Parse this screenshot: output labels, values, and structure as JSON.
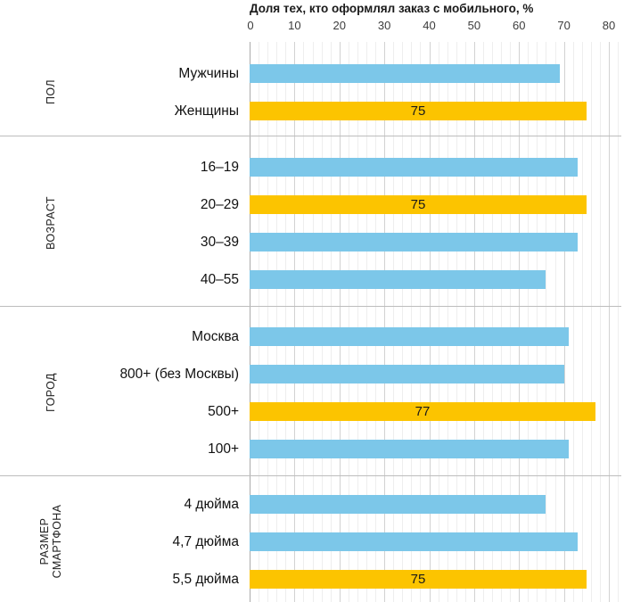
{
  "chart_data": {
    "type": "bar",
    "orientation": "horizontal",
    "title": "Доля тех, кто оформлял заказ с мобильного, %",
    "xlabel": "",
    "ylabel": "",
    "xlim": [
      0,
      80
    ],
    "x_ticks": [
      0,
      10,
      20,
      30,
      40,
      50,
      60,
      70,
      80
    ],
    "grid": "minor every 2, major every 10, vertical only",
    "legend": "none",
    "colors": {
      "bar": "#7CC7E9",
      "highlight": "#FCC400"
    },
    "groups": [
      {
        "name": "ПОЛ",
        "name_lines": [
          "ПОЛ"
        ],
        "rows": [
          {
            "label": "Мужчины",
            "value": 69,
            "highlight": false,
            "value_label": ""
          },
          {
            "label": "Женщины",
            "value": 75,
            "highlight": true,
            "value_label": "75"
          }
        ]
      },
      {
        "name": "ВОЗРАСТ",
        "name_lines": [
          "ВОЗРАСТ"
        ],
        "rows": [
          {
            "label": "16–19",
            "value": 73,
            "highlight": false,
            "value_label": ""
          },
          {
            "label": "20–29",
            "value": 75,
            "highlight": true,
            "value_label": "75"
          },
          {
            "label": "30–39",
            "value": 73,
            "highlight": false,
            "value_label": ""
          },
          {
            "label": "40–55",
            "value": 66,
            "highlight": false,
            "value_label": ""
          }
        ]
      },
      {
        "name": "ГОРОД",
        "name_lines": [
          "ГОРОД"
        ],
        "rows": [
          {
            "label": "Москва",
            "value": 71,
            "highlight": false,
            "value_label": ""
          },
          {
            "label": "800+ (без Москвы)",
            "value": 70,
            "highlight": false,
            "value_label": ""
          },
          {
            "label": "500+",
            "value": 77,
            "highlight": true,
            "value_label": "77"
          },
          {
            "label": "100+",
            "value": 71,
            "highlight": false,
            "value_label": ""
          }
        ]
      },
      {
        "name": "РАЗМЕР СМАРТФОНА",
        "name_lines": [
          "РАЗМЕР",
          "СМАРТФОНА"
        ],
        "rows": [
          {
            "label": "4 дюйма",
            "value": 66,
            "highlight": false,
            "value_label": ""
          },
          {
            "label": "4,7 дюйма",
            "value": 73,
            "highlight": false,
            "value_label": ""
          },
          {
            "label": "5,5 дюйма",
            "value": 75,
            "highlight": true,
            "value_label": "75"
          }
        ]
      }
    ]
  }
}
